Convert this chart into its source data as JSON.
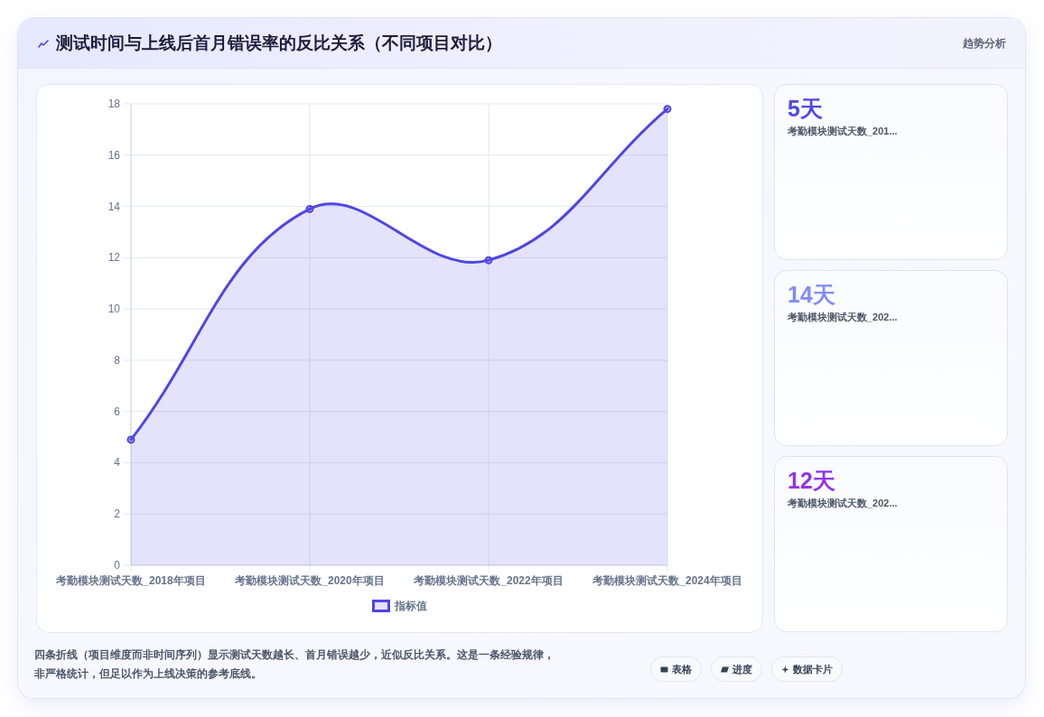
{
  "chart_data": [
    {
      "type": "area",
      "title": "测试时间与上线后首月错误率的反比关系（不同项目对比）",
      "categories": [
        "考勤模块测试天数_2018年项目",
        "考勤模块测试天数_2020年项目",
        "考勤模块测试天数_2022年项目",
        "考勤模块测试天数_2024年项目"
      ],
      "series": [
        {
          "name": "指标值",
          "color": "#4f46e5",
          "values": [
            4.9,
            13.9,
            11.9,
            17.8
          ]
        }
      ],
      "ylim": [
        0,
        18
      ],
      "yticks": [
        0,
        2,
        4,
        6,
        8,
        10,
        12,
        14,
        16,
        18
      ],
      "grid": true,
      "legend": "bottom",
      "marker": "circle",
      "line_style": "solid",
      "annotations": [
        "四条折线（项目维度而非时间序列）显示测试天数越长、首月错误越少，近似反比关系。这是一条经验规律，非严格统计，但足以作为上线决策的参考底线。"
      ]
    },
    {
      "type": "other",
      "title": "5天",
      "subtitle": "考勤模块测试天数_201...",
      "color": "#4f46e5",
      "annotations": [
        "趋势分析"
      ]
    },
    {
      "type": "other",
      "title": "14天",
      "subtitle": "考勤模块测试天数_202...",
      "color": "#818cf8"
    },
    {
      "type": "other",
      "title": "12天",
      "subtitle": "考勤模块测试天数_202...",
      "color": "#9333ea"
    },
    {
      "type": "other",
      "annotations": [
        "表格",
        "进度",
        "数据卡片"
      ]
    }
  ]
}
